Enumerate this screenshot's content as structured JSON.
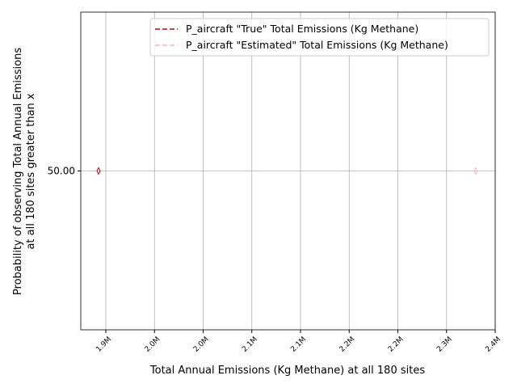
{
  "chart_data": {
    "type": "line",
    "xlabel": "Total Annual Emissions (Kg Methane) at all 180 sites",
    "ylabel": [
      "Probability of observing Total Annual Emissions",
      "at all 180 sites greater than x"
    ],
    "xlim": [
      1886700,
      2355000
    ],
    "xticks": [
      {
        "value": 1915000,
        "label": "1.9M"
      },
      {
        "value": 1970000,
        "label": "2.0M"
      },
      {
        "value": 2025000,
        "label": "2.0M"
      },
      {
        "value": 2080000,
        "label": "2.1M"
      },
      {
        "value": 2135000,
        "label": "2.1M"
      },
      {
        "value": 2190000,
        "label": "2.2M"
      },
      {
        "value": 2245000,
        "label": "2.2M"
      },
      {
        "value": 2300000,
        "label": "2.3M"
      },
      {
        "value": 2355000,
        "label": "2.4M"
      }
    ],
    "ylim": [
      45,
      55
    ],
    "yticks": [
      {
        "value": 50,
        "label": "50.00"
      }
    ],
    "grid": true,
    "legend": "upper right",
    "series": [
      {
        "name": "P_aircraft \"True\" Total Emissions (Kg Methane)",
        "color": "#a50f15",
        "x": [
          1906800
        ],
        "values": [
          50
        ]
      },
      {
        "name": "P_aircraft \"Estimated\" Total Emissions (Kg Methane)",
        "color": "#f7b6c8",
        "x": [
          2333000
        ],
        "values": [
          50
        ]
      }
    ]
  }
}
